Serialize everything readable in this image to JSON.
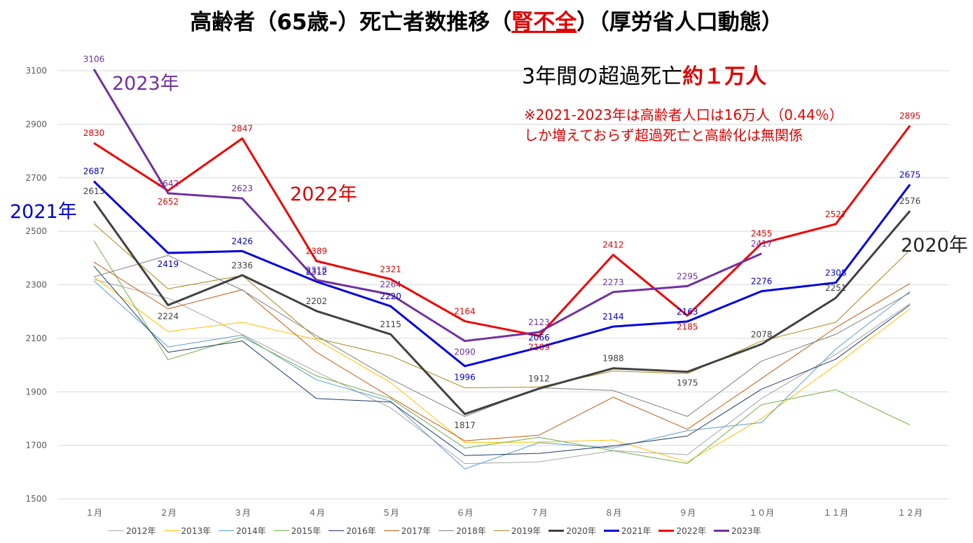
{
  "title": {
    "prefix": "高齢者（65歳-）死亡者数推移（",
    "highlight": "腎不全",
    "suffix": "）（厚労省人口動態）"
  },
  "annotations": {
    "excess_prefix": "3年間の超過死亡",
    "excess_highlight": "約１万人",
    "note_line1": "※2021-2023年は高齢者人口は16万人（0.44％）",
    "note_line2": "しか増えておらず超過死亡と高齢化は無関係"
  },
  "series_tags": {
    "y2023": "2023年",
    "y2022": "2022年",
    "y2021": "2021年",
    "y2020": "2020年"
  },
  "chart_data": {
    "type": "line",
    "title": "高齢者（65歳-）死亡者数推移（腎不全）（厚労省人口動態）",
    "xlabel": "",
    "ylabel": "",
    "categories": [
      "１月",
      "２月",
      "３月",
      "４月",
      "５月",
      "６月",
      "７月",
      "８月",
      "９月",
      "１０月",
      "１１月",
      "１２月"
    ],
    "ylim": [
      1500,
      3100
    ],
    "yticks": [
      1500,
      1700,
      1900,
      2100,
      2300,
      2500,
      2700,
      2900,
      3100
    ],
    "grid": "horizontal",
    "legend_position": "bottom",
    "series": [
      {
        "name": "2012年",
        "color": "#a6a6a6",
        "width": 1,
        "labels": false,
        "values": [
          2320,
          2250,
          2115,
          1975,
          1840,
          1632,
          1638,
          1680,
          1665,
          1875,
          2040,
          2230
        ]
      },
      {
        "name": "2013年",
        "color": "#ffc000",
        "width": 1,
        "labels": false,
        "values": [
          2330,
          2125,
          2160,
          2095,
          1935,
          1710,
          1712,
          1720,
          1638,
          1800,
          2000,
          2210
        ]
      },
      {
        "name": "2014年",
        "color": "#5b9bd5",
        "width": 1,
        "labels": false,
        "values": [
          2315,
          2068,
          2112,
          1945,
          1865,
          1612,
          1710,
          1690,
          1755,
          1785,
          2060,
          2275
        ]
      },
      {
        "name": "2015年",
        "color": "#70ad47",
        "width": 1,
        "labels": false,
        "values": [
          2465,
          2020,
          2105,
          1960,
          1875,
          1690,
          1730,
          1680,
          1632,
          1852,
          1908,
          1776
        ]
      },
      {
        "name": "2016年",
        "color": "#203864",
        "width": 1,
        "labels": false,
        "values": [
          2370,
          2048,
          2090,
          1875,
          1862,
          1662,
          1670,
          1698,
          1735,
          1910,
          2022,
          2225
        ]
      },
      {
        "name": "2017年",
        "color": "#c55a11",
        "width": 1,
        "labels": false,
        "values": [
          2385,
          2210,
          2282,
          2048,
          1880,
          1717,
          1738,
          1880,
          1760,
          1950,
          2140,
          2305
        ]
      },
      {
        "name": "2018年",
        "color": "#7f7f7f",
        "width": 1,
        "labels": false,
        "values": [
          2330,
          2410,
          2280,
          2110,
          1948,
          1808,
          1915,
          1905,
          1808,
          2015,
          2115,
          2270
        ]
      },
      {
        "name": "2019年",
        "color": "#a5891c",
        "width": 1,
        "labels": false,
        "values": [
          2528,
          2285,
          2335,
          2100,
          2035,
          1915,
          1918,
          1978,
          1968,
          2090,
          2160,
          2430
        ]
      },
      {
        "name": "2020年",
        "color": "#404040",
        "width": 3,
        "labels": true,
        "label_color": "#404040",
        "values": [
          2613,
          2224,
          2336,
          2202,
          2115,
          1817,
          1912,
          1988,
          1975,
          2078,
          2251,
          2576
        ]
      },
      {
        "name": "2021年",
        "color": "#0000e0",
        "width": 3,
        "labels": true,
        "label_color": "#0000cc",
        "values": [
          2687,
          2419,
          2426,
          2312,
          2220,
          1996,
          2066,
          2144,
          2163,
          2276,
          2308,
          2675
        ]
      },
      {
        "name": "2022年",
        "color": "#ee0000",
        "width": 3,
        "labels": true,
        "label_color": "#e00000",
        "values": [
          2830,
          2652,
          2847,
          2389,
          2321,
          2164,
          2109,
          2412,
          2185,
          2455,
          2527,
          2895
        ]
      },
      {
        "name": "2023年",
        "color": "#7030a0",
        "width": 3,
        "labels": true,
        "label_color": "#7030a0",
        "values": [
          3106,
          2642,
          2623,
          2318,
          2264,
          2090,
          2123,
          2273,
          2295,
          2417,
          null,
          null
        ]
      }
    ]
  }
}
